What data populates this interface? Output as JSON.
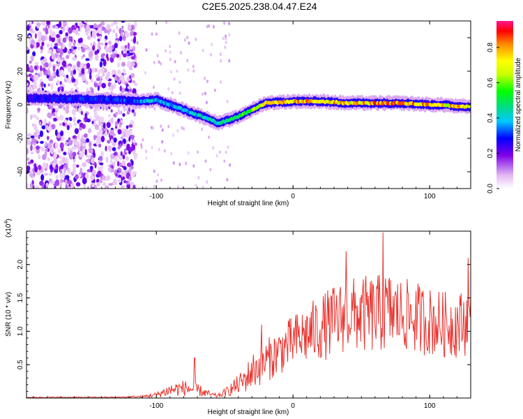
{
  "title": "C2E5.2025.238.04.47.E24",
  "colors": {
    "snr_line": "#e8332e",
    "axis": "#000000"
  },
  "chart_data": [
    {
      "type": "heatmap",
      "name": "spectrogram",
      "xlabel": "Height of straight line (km)",
      "ylabel": "Frequency (Hz)",
      "xlim": [
        -195,
        130
      ],
      "ylim": [
        -50,
        50
      ],
      "x_ticks": [
        -100,
        0,
        100
      ],
      "y_ticks": [
        -40,
        -20,
        0,
        20,
        40
      ],
      "colorbar": {
        "label": "Normalized spectral amplitude",
        "range": [
          0.0,
          0.95
        ],
        "ticks": [
          "0.0",
          "0.2",
          "0.4",
          "0.6",
          "0.8"
        ],
        "tick_values": [
          0.0,
          0.2,
          0.4,
          0.6,
          0.8
        ]
      },
      "ridge": {
        "x": [
          -195,
          -130,
          -110,
          -100,
          -90,
          -80,
          -70,
          -60,
          -55,
          -50,
          -40,
          -30,
          -20,
          0,
          20,
          40,
          60,
          80,
          100,
          110,
          120,
          130
        ],
        "freq": [
          4,
          3,
          2,
          3,
          0,
          -3,
          -6,
          -9,
          -11,
          -10,
          -7,
          -3,
          1,
          2,
          2,
          1,
          1,
          1,
          0,
          0,
          -1,
          -1
        ],
        "amplitude": [
          0.3,
          0.35,
          0.4,
          0.45,
          0.45,
          0.45,
          0.48,
          0.5,
          0.5,
          0.55,
          0.6,
          0.7,
          0.82,
          0.85,
          0.9,
          0.85,
          0.9,
          0.9,
          0.88,
          0.85,
          0.85,
          0.85
        ]
      },
      "noise_region_x": [
        -195,
        -115
      ]
    },
    {
      "type": "line",
      "name": "snr",
      "xlabel": "Height of straight line (km)",
      "ylabel": "SNR (10 * v/v)",
      "multiplier_label": "(x10",
      "multiplier_exp": "4",
      "multiplier_close": ")",
      "xlim": [
        -195,
        130
      ],
      "ylim": [
        0,
        2.5
      ],
      "x_ticks": [
        -100,
        0,
        100
      ],
      "y_ticks": [
        0.5,
        1.0,
        1.5,
        2.0
      ],
      "y_tick_labels": [
        "0.5",
        "1.0",
        "1.5",
        "2.0"
      ],
      "envelope_x": [
        -195,
        -130,
        -110,
        -100,
        -90,
        -80,
        -70,
        -60,
        -55,
        -50,
        -40,
        -35,
        -30,
        -20,
        -10,
        0,
        10,
        20,
        30,
        40,
        50,
        60,
        70,
        80,
        90,
        100,
        110,
        120,
        130
      ],
      "envelope_mean": [
        0.01,
        0.01,
        0.02,
        0.05,
        0.12,
        0.15,
        0.12,
        0.05,
        0.03,
        0.08,
        0.2,
        0.28,
        0.4,
        0.55,
        0.7,
        0.85,
        0.95,
        1.05,
        1.15,
        1.25,
        1.25,
        1.25,
        1.3,
        1.25,
        1.2,
        1.15,
        1.1,
        1.1,
        1.15
      ],
      "envelope_spread": [
        0.01,
        0.01,
        0.02,
        0.04,
        0.1,
        0.12,
        0.1,
        0.04,
        0.03,
        0.06,
        0.15,
        0.2,
        0.28,
        0.32,
        0.35,
        0.4,
        0.45,
        0.5,
        0.55,
        0.55,
        0.58,
        0.6,
        0.6,
        0.55,
        0.55,
        0.52,
        0.5,
        0.5,
        0.5
      ],
      "peaks": [
        {
          "x": -72,
          "y": 0.6
        },
        {
          "x": -23,
          "y": 1.1
        },
        {
          "x": 39,
          "y": 2.2
        },
        {
          "x": 66,
          "y": 2.48
        },
        {
          "x": 128,
          "y": 2.1
        }
      ],
      "n_points": 700
    }
  ]
}
